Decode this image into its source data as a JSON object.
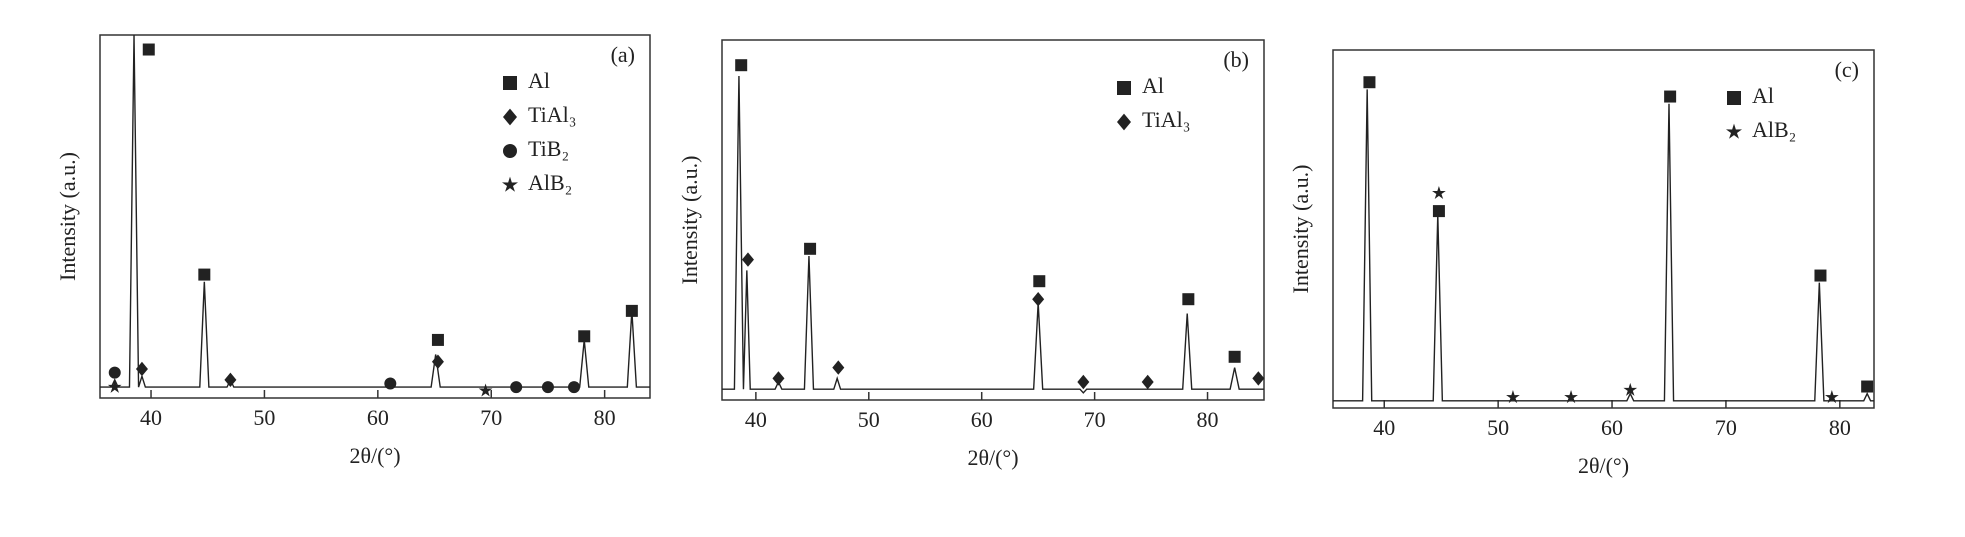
{
  "chart_data": [
    {
      "type": "line",
      "label": "(a)",
      "xlabel": "2θ/(°)",
      "ylabel": "Intensity (a.u.)",
      "color": "#222",
      "legend": "upper right",
      "xlim": [
        35.5,
        84
      ],
      "xticks": [
        40,
        50,
        60,
        70,
        80
      ],
      "ylim": [
        0,
        100
      ],
      "x": [
        35,
        36.5,
        36.8,
        37.1,
        38.1,
        38.5,
        38.9,
        39.2,
        39.5,
        44.3,
        44.7,
        45.1,
        46.7,
        47.0,
        47.3,
        60.8,
        61.1,
        61.4,
        64.7,
        65.1,
        65.5,
        77.8,
        78.2,
        78.6,
        82.0,
        82.4,
        82.8,
        85
      ],
      "values": [
        3,
        3,
        5,
        3,
        3,
        100,
        3,
        6,
        3,
        3,
        32,
        3,
        3,
        5,
        3,
        3,
        4,
        3,
        3,
        12,
        3,
        3,
        16,
        3,
        3,
        24,
        3,
        3
      ],
      "series": [
        {
          "name": "Al",
          "marker": "square",
          "x": [
            39.8,
            44.7,
            65.3,
            78.2,
            82.4
          ],
          "values": [
            96,
            34,
            16,
            17,
            24
          ]
        },
        {
          "name": "TiAl₃",
          "marker": "diamond",
          "x": [
            39.2,
            47.0,
            65.3
          ],
          "values": [
            8,
            5,
            10
          ]
        },
        {
          "name": "TiB₂",
          "marker": "circle",
          "x": [
            36.8,
            61.1,
            72.2,
            75.0,
            77.3
          ],
          "values": [
            7,
            4,
            3,
            3,
            3
          ]
        },
        {
          "name": "AlB₂",
          "marker": "star",
          "x": [
            36.8,
            69.5
          ],
          "values": [
            3,
            2
          ]
        }
      ]
    },
    {
      "type": "line",
      "label": "(b)",
      "xlabel": "2θ/(°)",
      "ylabel": "Intensity (a.u.)",
      "color": "#222",
      "legend": "upper right",
      "xlim": [
        37,
        85
      ],
      "xticks": [
        40,
        50,
        60,
        70,
        80
      ],
      "ylim": [
        0,
        100
      ],
      "x": [
        37,
        38.1,
        38.5,
        38.9,
        39.2,
        39.5,
        41.7,
        42.0,
        42.3,
        44.3,
        44.7,
        45.1,
        46.9,
        47.2,
        47.5,
        64.6,
        65.0,
        65.4,
        68.7,
        69.0,
        69.3,
        74.4,
        74.7,
        75.0,
        77.8,
        78.2,
        78.6,
        82.0,
        82.4,
        82.8,
        84.2,
        84.5,
        84.8,
        85
      ],
      "values": [
        3,
        3,
        90,
        3,
        36,
        3,
        3,
        5,
        3,
        3,
        40,
        3,
        3,
        6,
        3,
        3,
        27,
        3,
        3,
        2,
        3,
        3,
        3,
        3,
        3,
        24,
        3,
        3,
        9,
        3,
        3,
        3,
        3,
        3
      ],
      "series": [
        {
          "name": "Al",
          "marker": "square",
          "x": [
            38.7,
            44.8,
            65.1,
            78.3,
            82.4
          ],
          "values": [
            93,
            42,
            33,
            28,
            12
          ]
        },
        {
          "name": "TiAl₃",
          "marker": "diamond",
          "x": [
            39.3,
            42.0,
            47.3,
            65.0,
            69.0,
            74.7,
            84.5
          ],
          "values": [
            39,
            6,
            9,
            28,
            5,
            5,
            6
          ]
        }
      ]
    },
    {
      "type": "line",
      "label": "(c)",
      "xlabel": "2θ/(°)",
      "ylabel": "Intensity (a.u.)",
      "color": "#222",
      "legend": "upper right",
      "xlim": [
        35.5,
        83
      ],
      "xticks": [
        40,
        50,
        60,
        70,
        80
      ],
      "ylim": [
        0,
        100
      ],
      "x": [
        35.5,
        38.1,
        38.5,
        38.9,
        44.3,
        44.7,
        45.1,
        61.3,
        61.6,
        61.9,
        64.6,
        65.0,
        65.4,
        77.8,
        78.2,
        78.6,
        82.1,
        82.4,
        82.7,
        83
      ],
      "values": [
        2,
        2,
        89,
        2,
        2,
        54,
        2,
        2,
        4,
        2,
        2,
        85,
        2,
        2,
        35,
        2,
        2,
        4,
        2,
        2
      ],
      "series": [
        {
          "name": "Al",
          "marker": "square",
          "x": [
            38.7,
            44.8,
            65.1,
            78.3,
            82.4
          ],
          "values": [
            91,
            55,
            87,
            37,
            6
          ]
        },
        {
          "name": "AlB₂",
          "marker": "star",
          "x": [
            44.8,
            51.3,
            56.4,
            61.6,
            79.3
          ],
          "values": [
            60,
            3,
            3,
            5,
            3
          ]
        }
      ]
    }
  ]
}
